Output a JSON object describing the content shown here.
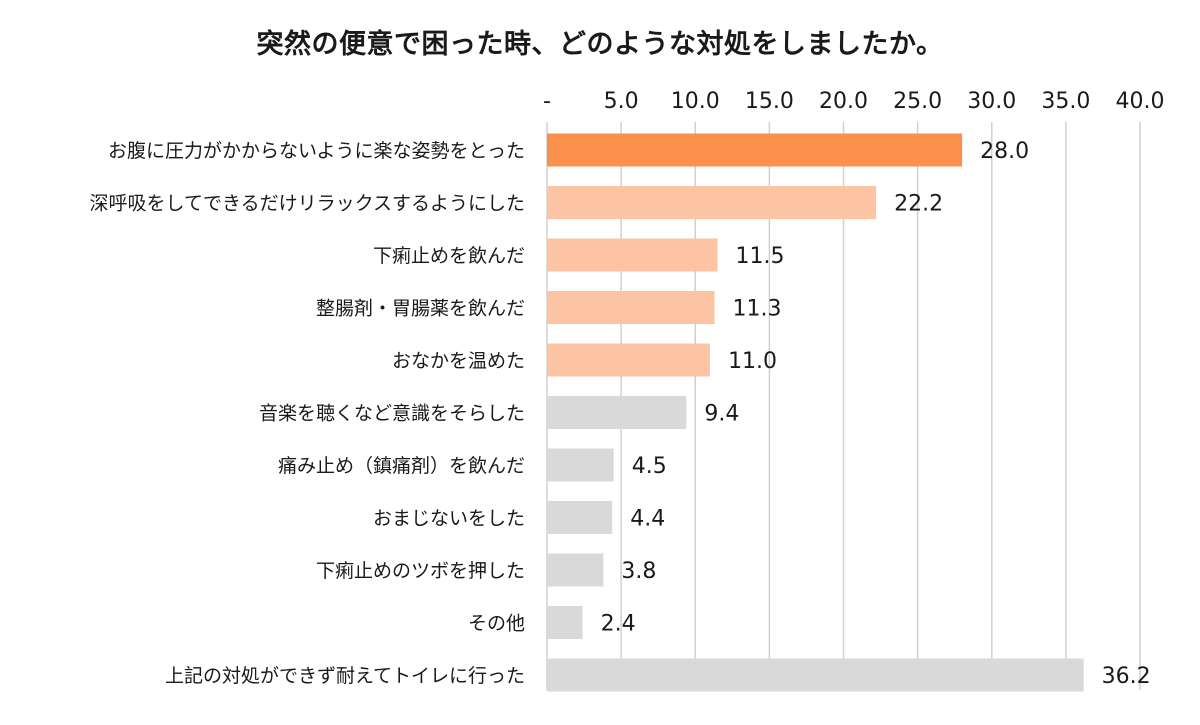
{
  "chart_data": {
    "type": "bar",
    "orientation": "horizontal",
    "title": "突然の便意で困った時、どのような対処をしましたか。",
    "xlim": [
      0,
      40
    ],
    "ticks": [
      {
        "value": 0,
        "label": "-"
      },
      {
        "value": 5,
        "label": "5.0"
      },
      {
        "value": 10,
        "label": "10.0"
      },
      {
        "value": 15,
        "label": "15.0"
      },
      {
        "value": 20,
        "label": "20.0"
      },
      {
        "value": 25,
        "label": "25.0"
      },
      {
        "value": 30,
        "label": "30.0"
      },
      {
        "value": 35,
        "label": "35.0"
      },
      {
        "value": 40,
        "label": "40.0"
      }
    ],
    "grid": true,
    "axis_position": "top",
    "categories": [
      "お腹に圧力がかからないように楽な姿勢をとった",
      "深呼吸をしてできるだけリラックスするようにした",
      "下痢止めを飲んだ",
      "整腸剤・胃腸薬を飲んだ",
      "おなかを温めた",
      "音楽を聴くなど意識をそらした",
      "痛み止め（鎮痛剤）を飲んだ",
      "おまじないをした",
      "下痢止めのツボを押した",
      "その他",
      "上記の対処ができず耐えてトイレに行った"
    ],
    "values": [
      28.0,
      22.2,
      11.5,
      11.3,
      11.0,
      9.4,
      4.5,
      4.4,
      3.8,
      2.4,
      36.2
    ],
    "value_labels": [
      "28.0",
      "22.2",
      "11.5",
      "11.3",
      "11.0",
      "9.4",
      "4.5",
      "4.4",
      "3.8",
      "2.4",
      "36.2"
    ],
    "colors": [
      "#fb8f4c",
      "#fcc4a2",
      "#fcc4a2",
      "#fcc4a2",
      "#fcc4a2",
      "#d9d9d9",
      "#d9d9d9",
      "#d9d9d9",
      "#d9d9d9",
      "#d9d9d9",
      "#d9d9d9"
    ]
  }
}
